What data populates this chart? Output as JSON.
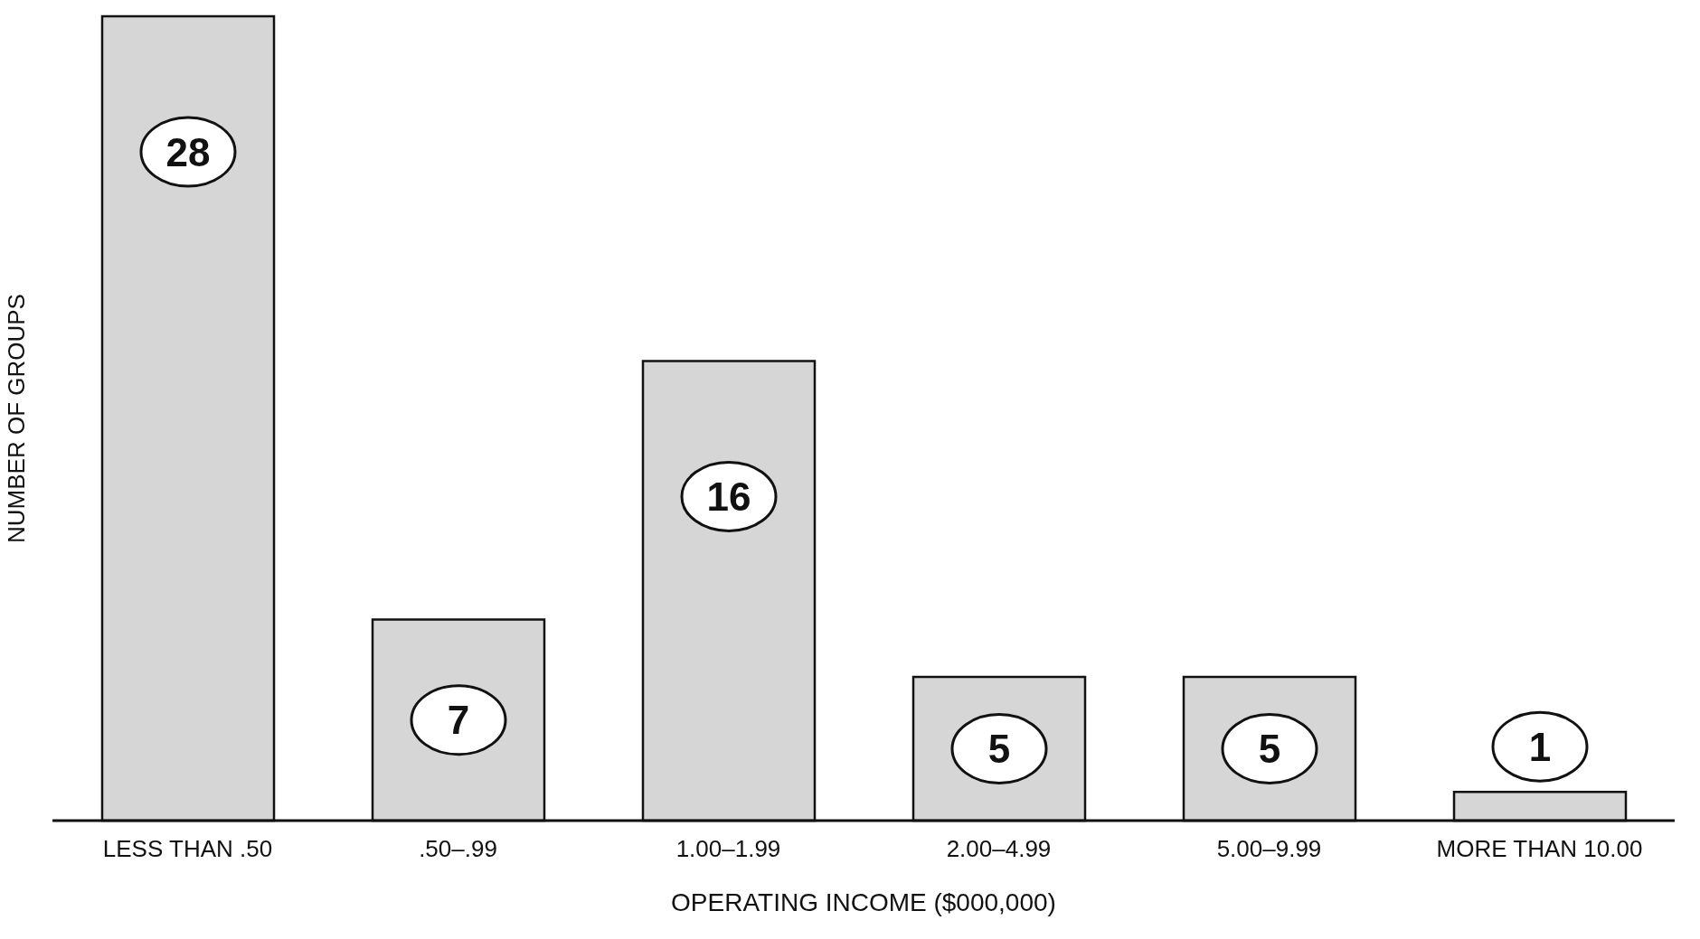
{
  "chart_data": {
    "type": "bar",
    "xlabel": "OPERATING INCOME ($000,000)",
    "ylabel": "NUMBER OF GROUPS",
    "categories": [
      "LESS THAN .50",
      ".50–.99",
      "1.00–1.99",
      "2.00–4.99",
      "5.00–9.99",
      "MORE THAN 10.00"
    ],
    "values": [
      28,
      7,
      16,
      5,
      5,
      1
    ],
    "color": "#d6d6d6",
    "data_labels": true,
    "grid": false,
    "legend": false
  }
}
